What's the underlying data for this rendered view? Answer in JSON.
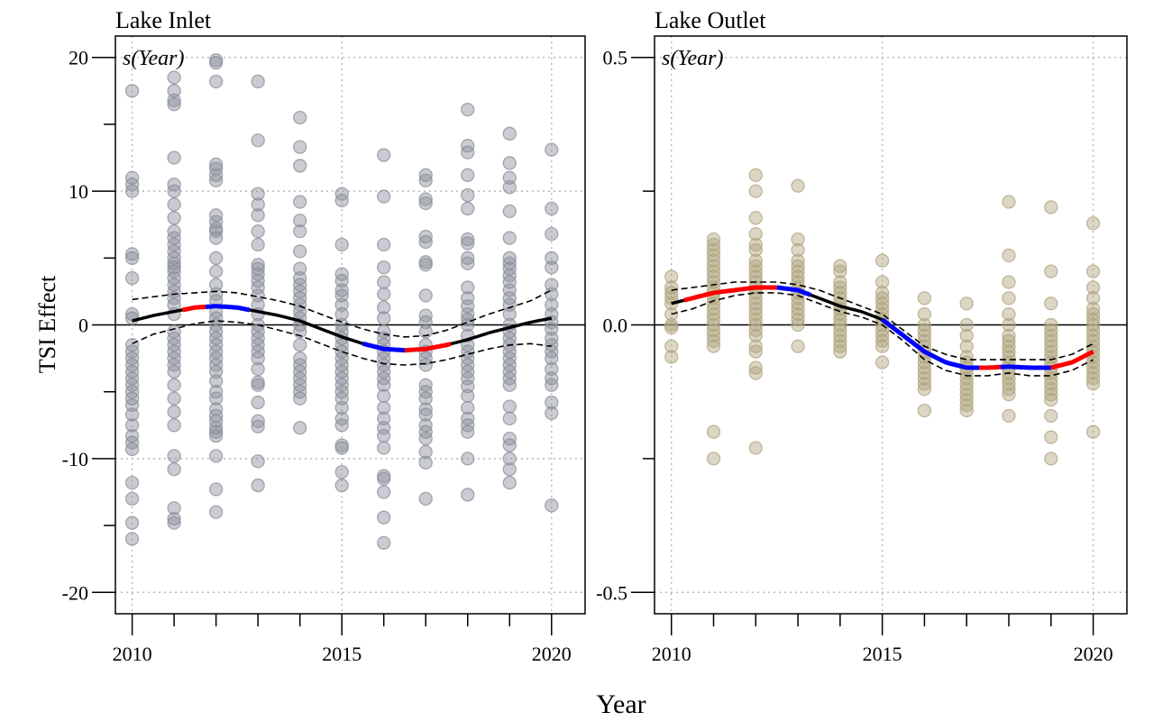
{
  "figure": {
    "xlabel": "Year",
    "ylabel": "TSI Effect"
  },
  "chart_data": [
    {
      "type": "scatter",
      "title": "Lake Inlet",
      "annotation": "s(Year)",
      "xlim": [
        2009.6,
        2020.8
      ],
      "ylim": [
        -21.6,
        21.6
      ],
      "xticks": [
        2010,
        2015,
        2020
      ],
      "yticks": [
        -20,
        -10,
        0,
        10,
        20
      ],
      "xgrid": [
        2010,
        2015,
        2020
      ],
      "ygrid": [
        -20,
        -10,
        10,
        20
      ],
      "zero_line": 0,
      "grid": true,
      "point_color": "#8a8f9a",
      "points": {
        "2010": [
          17.5,
          11,
          10.5,
          10,
          5.3,
          5,
          3.5,
          0.8,
          0.5,
          -1.5,
          -2,
          -2.5,
          -3,
          -3.5,
          -4,
          -4.5,
          -5,
          -5.5,
          -6,
          -6.7,
          -7.5,
          -8.3,
          -8.8,
          -9.3,
          -11.8,
          -13,
          -14.8,
          -16
        ],
        "2011": [
          18.5,
          17.5,
          16.8,
          16.5,
          12.5,
          10.5,
          10,
          9,
          8,
          7,
          6.5,
          6,
          5.5,
          5,
          4.6,
          4.3,
          4,
          3.5,
          3,
          2.5,
          2,
          1.5,
          0.8,
          -0.5,
          -1,
          -1.5,
          -2,
          -2.5,
          -3,
          -3.5,
          -4.5,
          -5.5,
          -6.5,
          -7.5,
          -9.8,
          -10.8,
          -13.7,
          -14.5,
          -14.8
        ],
        "2012": [
          19.8,
          19.6,
          18.2,
          12,
          11.7,
          11.2,
          10.8,
          8.2,
          7.7,
          7.2,
          7,
          6.5,
          5,
          4,
          3,
          2.3,
          1.8,
          1,
          0.5,
          0,
          -0.5,
          -1,
          -1.5,
          -2,
          -2.5,
          -3,
          -3.5,
          -4.2,
          -5,
          -5.5,
          -6.3,
          -6.8,
          -7.2,
          -7.7,
          -8,
          -8.3,
          -9.8,
          -12.3,
          -14
        ],
        "2013": [
          18.2,
          13.8,
          9.8,
          9,
          8.2,
          7,
          6,
          4.5,
          4.2,
          3.8,
          3.3,
          2.8,
          2.2,
          1.5,
          0.8,
          0,
          -0.5,
          -1,
          -1.5,
          -2,
          -2.5,
          -3.3,
          -4.3,
          -4.5,
          -5.8,
          -7.2,
          -7.6,
          -10.2,
          -12
        ],
        "2014": [
          15.5,
          13.3,
          11.9,
          9.2,
          7.8,
          7,
          5.5,
          4.2,
          3.5,
          3,
          2.5,
          2,
          1.5,
          1,
          0.5,
          0,
          -0.5,
          -1.5,
          -2.5,
          -3,
          -3.5,
          -4,
          -4.5,
          -5,
          -5.5,
          -7.7
        ],
        "2015": [
          9.8,
          9.3,
          6,
          3.8,
          3.3,
          2.6,
          2.2,
          1.5,
          0.8,
          0,
          -0.5,
          -1,
          -1.5,
          -2,
          -2.5,
          -3,
          -3.5,
          -4,
          -4.5,
          -5,
          -5.5,
          -6.2,
          -7,
          -7.5,
          -9,
          -9.2,
          -11,
          -12
        ],
        "2016": [
          12.7,
          9.6,
          6,
          4.3,
          3.2,
          2.3,
          1.3,
          0.5,
          -0.5,
          -1,
          -1.5,
          -2,
          -2.5,
          -3,
          -3.5,
          -4,
          -4.5,
          -5.3,
          -6.2,
          -7,
          -7.7,
          -8.3,
          -9.2,
          -11.3,
          -11.5,
          -12.5,
          -14.4,
          -16.3
        ],
        "2017": [
          11.2,
          10.8,
          9.4,
          9.1,
          6.6,
          6.2,
          4.7,
          4.5,
          2.2,
          0.7,
          0.2,
          -0.5,
          -1.5,
          -2,
          -2.5,
          -3,
          -4.5,
          -5,
          -5.5,
          -6.3,
          -6.7,
          -7.5,
          -8,
          -8.5,
          -9.5,
          -10.3,
          -13
        ],
        "2018": [
          16.1,
          13.4,
          12.9,
          11.2,
          9.7,
          8.7,
          6.4,
          6.1,
          5,
          4.6,
          2.8,
          2,
          1.4,
          0.8,
          0.4,
          0,
          -0.8,
          -1.5,
          -2,
          -2.5,
          -3,
          -3.5,
          -4,
          -4.6,
          -5.3,
          -6.2,
          -7,
          -7.5,
          -8,
          -10,
          -12.7
        ],
        "2019": [
          14.3,
          12.1,
          11,
          10.3,
          8.5,
          6.5,
          5,
          4.6,
          4.2,
          3.7,
          3.2,
          2.6,
          2,
          1.5,
          0.8,
          0,
          -0.5,
          -1,
          -1.5,
          -2,
          -2.5,
          -3,
          -3.5,
          -4,
          -4.5,
          -6.1,
          -7,
          -8.5,
          -9,
          -10,
          -10.8,
          -11.8
        ],
        "2020": [
          13.1,
          8.7,
          6.8,
          5,
          4.3,
          3,
          2.3,
          1.5,
          0.8,
          0.2,
          -0.3,
          -1,
          -1.5,
          -2,
          -2.5,
          -3.3,
          -4,
          -4.5,
          -5.8,
          -6.6,
          -13.5
        ]
      },
      "smooth": {
        "x": [
          2010,
          2010.5,
          2011,
          2011.5,
          2012,
          2012.5,
          2013,
          2013.5,
          2014,
          2014.5,
          2015,
          2015.5,
          2016,
          2016.5,
          2017,
          2017.5,
          2018,
          2018.5,
          2019,
          2019.5,
          2020
        ],
        "fit": [
          0.3,
          0.7,
          1.0,
          1.3,
          1.4,
          1.3,
          1.0,
          0.7,
          0.3,
          -0.3,
          -0.9,
          -1.4,
          -1.8,
          -1.9,
          -1.8,
          -1.5,
          -1.1,
          -0.6,
          -0.2,
          0.2,
          0.5
        ],
        "upper": [
          1.9,
          2.1,
          2.3,
          2.4,
          2.5,
          2.4,
          2.1,
          1.8,
          1.4,
          0.8,
          0.2,
          -0.3,
          -0.7,
          -0.9,
          -0.8,
          -0.4,
          0.2,
          0.8,
          1.3,
          1.8,
          2.6
        ],
        "lower": [
          -1.4,
          -0.7,
          -0.3,
          0.1,
          0.3,
          0.2,
          0,
          -0.4,
          -0.8,
          -1.4,
          -2.0,
          -2.5,
          -2.9,
          -3.0,
          -2.9,
          -2.6,
          -2.2,
          -1.8,
          -1.5,
          -1.4,
          -1.6
        ],
        "segments": [
          {
            "from": 2010,
            "to": 2011.2,
            "color": "#000000"
          },
          {
            "from": 2011.2,
            "to": 2011.75,
            "color": "#ff0000"
          },
          {
            "from": 2011.75,
            "to": 2012.8,
            "color": "#0000ff"
          },
          {
            "from": 2012.8,
            "to": 2015.5,
            "color": "#000000"
          },
          {
            "from": 2015.5,
            "to": 2016.5,
            "color": "#0000ff"
          },
          {
            "from": 2016.5,
            "to": 2017.6,
            "color": "#ff0000"
          },
          {
            "from": 2017.6,
            "to": 2020,
            "color": "#000000"
          }
        ]
      }
    },
    {
      "type": "scatter",
      "title": "Lake Outlet",
      "annotation": "s(Year)",
      "xlim": [
        2009.6,
        2020.8
      ],
      "ylim": [
        -0.54,
        0.54
      ],
      "xticks": [
        2010,
        2015,
        2020
      ],
      "yticks": [
        -0.5,
        0.0,
        0.5
      ],
      "ytick_labels": [
        "-0.5",
        "0.0",
        "0.5"
      ],
      "xgrid": [
        2010,
        2015,
        2020
      ],
      "ygrid": [
        -0.5,
        0.5
      ],
      "zero_line": 0,
      "grid": true,
      "point_color": "#b0a47e",
      "points": {
        "2010": [
          0.09,
          0.07,
          0.06,
          0.05,
          0.04,
          0.02,
          0.0,
          -0.005,
          -0.04,
          -0.06
        ],
        "2011": [
          0.16,
          0.15,
          0.14,
          0.13,
          0.12,
          0.11,
          0.1,
          0.09,
          0.08,
          0.07,
          0.06,
          0.05,
          0.04,
          0.03,
          0.02,
          0.01,
          0.0,
          -0.01,
          -0.02,
          -0.03,
          -0.04,
          -0.2,
          -0.25
        ],
        "2012": [
          0.28,
          0.25,
          0.2,
          0.17,
          0.15,
          0.14,
          0.12,
          0.11,
          0.1,
          0.09,
          0.08,
          0.07,
          0.06,
          0.05,
          0.04,
          0.03,
          0.02,
          0.01,
          0.0,
          -0.01,
          -0.02,
          -0.04,
          -0.05,
          -0.08,
          -0.09,
          -0.23
        ],
        "2013": [
          0.26,
          0.16,
          0.14,
          0.12,
          0.11,
          0.1,
          0.09,
          0.08,
          0.07,
          0.06,
          0.05,
          0.04,
          0.03,
          0.02,
          0.01,
          0.0,
          -0.04
        ],
        "2014": [
          0.11,
          0.1,
          0.08,
          0.07,
          0.06,
          0.05,
          0.04,
          0.03,
          0.02,
          0.01,
          0.0,
          -0.01,
          -0.02,
          -0.03,
          -0.04,
          -0.05
        ],
        "2015": [
          0.12,
          0.08,
          0.06,
          0.05,
          0.04,
          0.03,
          0.02,
          0.01,
          0.0,
          -0.01,
          -0.02,
          -0.03,
          -0.04,
          -0.07
        ],
        "2016": [
          0.05,
          0.02,
          0.0,
          -0.01,
          -0.02,
          -0.03,
          -0.04,
          -0.05,
          -0.06,
          -0.07,
          -0.08,
          -0.09,
          -0.1,
          -0.11,
          -0.12,
          -0.16
        ],
        "2017": [
          0.04,
          0.0,
          -0.02,
          -0.04,
          -0.06,
          -0.07,
          -0.08,
          -0.09,
          -0.1,
          -0.11,
          -0.12,
          -0.13,
          -0.14,
          -0.15,
          -0.16
        ],
        "2018": [
          0.23,
          0.13,
          0.08,
          0.05,
          0.02,
          0.0,
          -0.02,
          -0.03,
          -0.04,
          -0.05,
          -0.06,
          -0.07,
          -0.08,
          -0.09,
          -0.1,
          -0.11,
          -0.12,
          -0.13,
          -0.17
        ],
        "2019": [
          0.22,
          0.1,
          0.04,
          0.0,
          -0.01,
          -0.02,
          -0.03,
          -0.04,
          -0.05,
          -0.06,
          -0.07,
          -0.08,
          -0.09,
          -0.1,
          -0.11,
          -0.12,
          -0.13,
          -0.14,
          -0.17,
          -0.21,
          -0.25
        ],
        "2020": [
          0.19,
          0.1,
          0.07,
          0.05,
          0.03,
          0.02,
          0.01,
          0.0,
          -0.01,
          -0.02,
          -0.03,
          -0.04,
          -0.05,
          -0.06,
          -0.07,
          -0.08,
          -0.09,
          -0.1,
          -0.11,
          -0.2
        ]
      },
      "smooth": {
        "x": [
          2010,
          2010.5,
          2011,
          2011.5,
          2012,
          2012.5,
          2013,
          2013.5,
          2014,
          2014.5,
          2015,
          2015.5,
          2016,
          2016.5,
          2017,
          2017.5,
          2018,
          2018.5,
          2019,
          2019.5,
          2020
        ],
        "fit": [
          0.04,
          0.05,
          0.06,
          0.065,
          0.07,
          0.07,
          0.065,
          0.05,
          0.035,
          0.025,
          0.01,
          -0.02,
          -0.05,
          -0.07,
          -0.08,
          -0.08,
          -0.078,
          -0.08,
          -0.08,
          -0.07,
          -0.05
        ],
        "upper": [
          0.065,
          0.07,
          0.075,
          0.08,
          0.08,
          0.08,
          0.075,
          0.065,
          0.05,
          0.035,
          0.02,
          -0.01,
          -0.04,
          -0.055,
          -0.065,
          -0.065,
          -0.065,
          -0.065,
          -0.065,
          -0.055,
          -0.035
        ],
        "lower": [
          0.02,
          0.03,
          0.045,
          0.055,
          0.06,
          0.06,
          0.055,
          0.04,
          0.025,
          0.015,
          0.0,
          -0.03,
          -0.065,
          -0.085,
          -0.095,
          -0.095,
          -0.09,
          -0.095,
          -0.095,
          -0.085,
          -0.065
        ],
        "segments": [
          {
            "from": 2010,
            "to": 2010.3,
            "color": "#000000"
          },
          {
            "from": 2010.3,
            "to": 2012.5,
            "color": "#ff0000"
          },
          {
            "from": 2012.5,
            "to": 2013.3,
            "color": "#0000ff"
          },
          {
            "from": 2013.3,
            "to": 2015,
            "color": "#000000"
          },
          {
            "from": 2015,
            "to": 2017.3,
            "color": "#0000ff"
          },
          {
            "from": 2017.3,
            "to": 2017.8,
            "color": "#ff0000"
          },
          {
            "from": 2017.8,
            "to": 2019,
            "color": "#0000ff"
          },
          {
            "from": 2019,
            "to": 2020,
            "color": "#ff0000"
          }
        ]
      }
    }
  ]
}
